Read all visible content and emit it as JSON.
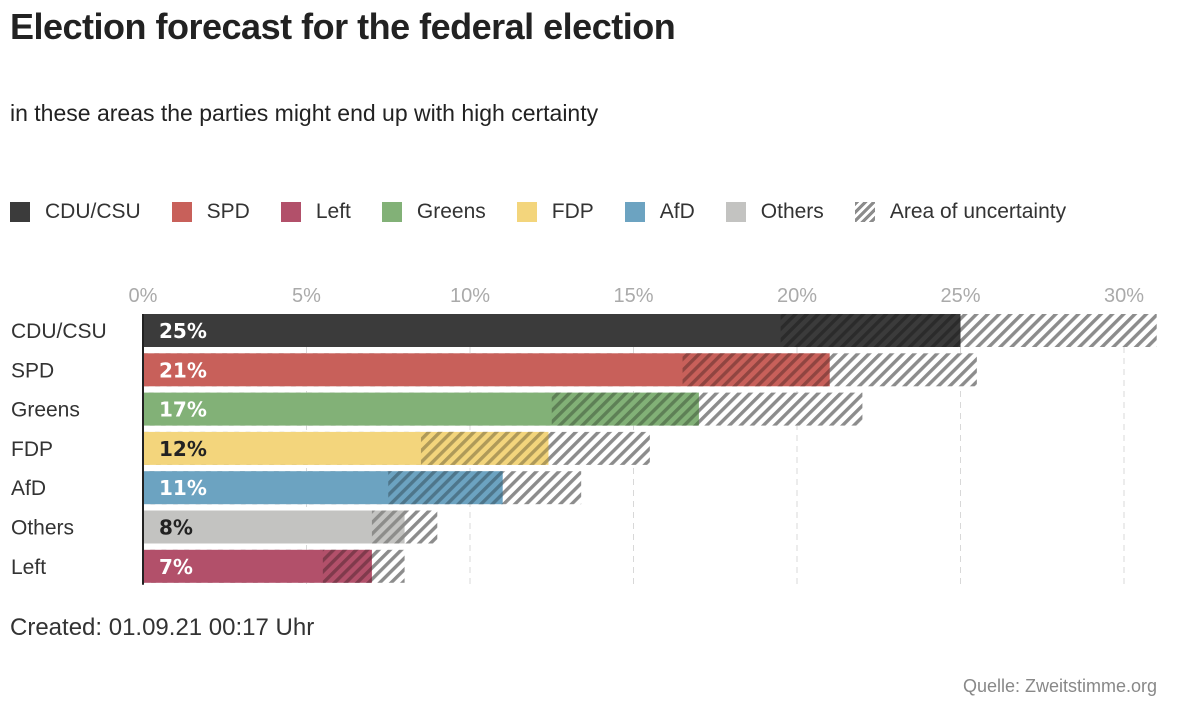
{
  "title": "Election forecast for the federal election",
  "subtitle": "in these areas the parties might end up with high certainty",
  "legend": [
    {
      "label": "CDU/CSU",
      "color": "#3b3b3b",
      "icon": "square"
    },
    {
      "label": "SPD",
      "color": "#c8605a",
      "icon": "square"
    },
    {
      "label": "Left",
      "color": "#b2506a",
      "icon": "square"
    },
    {
      "label": "Greens",
      "color": "#82b177",
      "icon": "square"
    },
    {
      "label": "FDP",
      "color": "#f3d57c",
      "icon": "square"
    },
    {
      "label": "AfD",
      "color": "#6ca3c1",
      "icon": "square"
    },
    {
      "label": "Others",
      "color": "#c3c3c1",
      "icon": "square"
    },
    {
      "label": "Area of uncertainty",
      "color": "#8c8c8c",
      "icon": "hatch"
    }
  ],
  "chart_data": {
    "type": "bar",
    "orientation": "horizontal",
    "title": "Election forecast for the federal election",
    "subtitle": "in these areas the parties might end up with high certainty",
    "xlabel": "",
    "ylabel": "",
    "xlim": [
      0,
      30
    ],
    "xticks": [
      0,
      5,
      10,
      15,
      20,
      25,
      30
    ],
    "xtick_labels": [
      "0%",
      "5%",
      "10%",
      "15%",
      "20%",
      "25%",
      "30%"
    ],
    "grid": true,
    "legend_position": "top",
    "categories": [
      "CDU/CSU",
      "SPD",
      "Greens",
      "FDP",
      "AfD",
      "Others",
      "Left"
    ],
    "series": [
      {
        "name": "forecast",
        "values": [
          25,
          21,
          17,
          12,
          11,
          8,
          7
        ]
      },
      {
        "name": "certain_range_low",
        "values": [
          19.5,
          16.5,
          12.5,
          8.5,
          7.5,
          7,
          5.5
        ]
      },
      {
        "name": "certain_range_high",
        "values": [
          25,
          21,
          17,
          12.4,
          11,
          8,
          7
        ]
      },
      {
        "name": "uncertainty_high",
        "values": [
          31,
          25.5,
          22,
          15.5,
          13.4,
          9,
          8
        ]
      }
    ],
    "value_labels": [
      "25%",
      "21%",
      "17%",
      "12%",
      "11%",
      "8%",
      "7%"
    ],
    "colors": [
      "#3b3b3b",
      "#c8605a",
      "#82b177",
      "#f3d57c",
      "#6ca3c1",
      "#c3c3c1",
      "#b2506a"
    ],
    "label_colors": [
      "#ffffff",
      "#ffffff",
      "#ffffff",
      "#222222",
      "#ffffff",
      "#222222",
      "#ffffff"
    ]
  },
  "created": "Created: 01.09.21 00:17 Uhr",
  "source": "Quelle: Zweitstimme.org"
}
